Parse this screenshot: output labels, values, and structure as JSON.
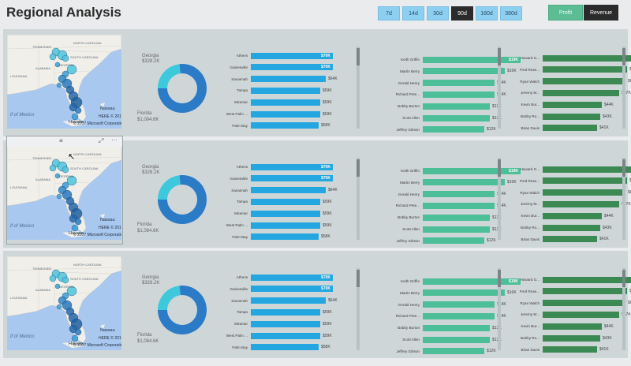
{
  "title": "Regional Analysis",
  "ranges": [
    {
      "label": "7d",
      "active": false
    },
    {
      "label": "14d",
      "active": false
    },
    {
      "label": "30d",
      "active": false
    },
    {
      "label": "90d",
      "active": true
    },
    {
      "label": "180d",
      "active": false
    },
    {
      "label": "360d",
      "active": false
    }
  ],
  "metrics": {
    "profit": "Profit",
    "revenue": "Revenue"
  },
  "map": {
    "labels": {
      "nc": "NORTH CAROLINA",
      "tn": "TENNESSEE",
      "sc": "SOUTH CAROLINA",
      "ga": "GEORGIA",
      "al": "ALABAMA",
      "la": "LOUISIANA",
      "gulf": "lf of Mexico",
      "havana": "Havana",
      "nassau": "Nassau"
    },
    "attribution": {
      "here": "HERE © 2017",
      "ms": "© 2017 Microsoft Corporation"
    }
  },
  "donut": {
    "georgia": {
      "name": "Georgia",
      "value": "$328.2K"
    },
    "florida": {
      "name": "Florida",
      "value": "$1,084.6K"
    },
    "share_georgia": 0.232,
    "colors": {
      "georgia": "#3dc8dc",
      "florida": "#2b7bc6"
    }
  },
  "cities": {
    "color": "#24a7e0",
    "rows": [
      {
        "label": "Athens",
        "value": "$70K",
        "v": 70
      },
      {
        "label": "Gainesville",
        "value": "$70K",
        "v": 70
      },
      {
        "label": "Savannah",
        "value": "$64K",
        "v": 64
      },
      {
        "label": "Tampa",
        "value": "$59K",
        "v": 59
      },
      {
        "label": "Miramar",
        "value": "$59K",
        "v": 59
      },
      {
        "label": "West Palm ...",
        "value": "$59K",
        "v": 59
      },
      {
        "label": "Palm Bay",
        "value": "$58K",
        "v": 58
      }
    ]
  },
  "reps_a": {
    "color": "#4cbf98",
    "rows": [
      {
        "label": "Keith Griffin",
        "value": "$19K",
        "v": 19
      },
      {
        "label": "Martin Berry",
        "value": "$16K",
        "v": 16
      },
      {
        "label": "Gerald Henry",
        "value": "$14K",
        "v": 14
      },
      {
        "label": "Richard Pete...",
        "value": "$14K",
        "v": 14
      },
      {
        "label": "Bobby Burton",
        "value": "$13K",
        "v": 13
      },
      {
        "label": "Scott Allen",
        "value": "$13K",
        "v": 13
      },
      {
        "label": "Jeffrey Gibson",
        "value": "$12K",
        "v": 12
      }
    ]
  },
  "reps_b": {
    "color": "#3b8a53",
    "rows": [
      {
        "label": "Howard G...",
        "value": "$85K",
        "v": 85
      },
      {
        "label": "Fred Rose...",
        "value": "$63K",
        "v": 63
      },
      {
        "label": "Ryan Walch",
        "value": "$62K",
        "v": 62
      },
      {
        "label": "Jeremy M...",
        "value": "$57K",
        "v": 57
      },
      {
        "label": "Kevin Bur...",
        "value": "$44K",
        "v": 44
      },
      {
        "label": "Bobby Ro...",
        "value": "$43K",
        "v": 43
      },
      {
        "label": "Brian Davis",
        "value": "$41K",
        "v": 41
      }
    ]
  },
  "focus_icons": {
    "menu": "≡",
    "expand": "⤢",
    "more": "···"
  }
}
